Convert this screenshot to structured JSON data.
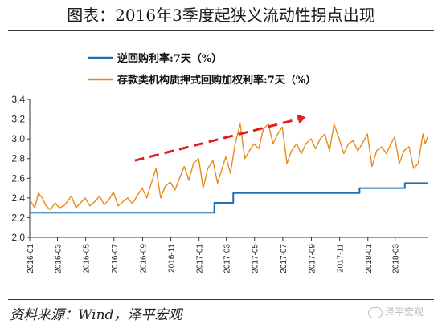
{
  "header": {
    "title": "图表：2016年3季度起狭义流动性拐点出现"
  },
  "footer": {
    "source": "资料来源：Wind，泽平宏观",
    "watermark": "泽平宏观"
  },
  "colors": {
    "blue": "#1f6fb2",
    "orange": "#e88a1a",
    "arrow": "#e02020"
  },
  "chart_data": {
    "type": "line",
    "title": "图表：2016年3季度起狭义流动性拐点出现",
    "xlabel": "",
    "ylabel": "",
    "ylim": [
      2.0,
      3.4
    ],
    "yticks": [
      "2.0",
      "2.2",
      "2.4",
      "2.6",
      "2.8",
      "3.0",
      "3.2",
      "3.4"
    ],
    "xticks": [
      "2016-01",
      "2016-03",
      "2016-05",
      "2016-07",
      "2016-09",
      "2016-11",
      "2017-01",
      "2017-03",
      "2017-05",
      "2017-07",
      "2017-09",
      "2017-11",
      "2018-01",
      "2018-03"
    ],
    "xlim": [
      "2016-01-01",
      "2018-05-10"
    ],
    "legend_position": "top-left",
    "grid": false,
    "annotations": [
      {
        "type": "arrow",
        "from": [
          "2016-08-15",
          2.78
        ],
        "to": [
          "2017-08-20",
          3.22
        ],
        "style": "dashed-red"
      }
    ],
    "series": [
      {
        "name": "逆回购利率:7天（%）",
        "color": "#1f6fb2",
        "step": true,
        "points": [
          [
            "2016-01-01",
            2.25
          ],
          [
            "2017-02-03",
            2.35
          ],
          [
            "2017-03-16",
            2.45
          ],
          [
            "2017-12-14",
            2.5
          ],
          [
            "2018-03-22",
            2.55
          ],
          [
            "2018-05-10",
            2.55
          ]
        ]
      },
      {
        "name": "存款类机构质押式回购加权利率:7天（%）",
        "color": "#e88a1a",
        "points": [
          [
            "2016-01-04",
            2.36
          ],
          [
            "2016-01-12",
            2.3
          ],
          [
            "2016-01-20",
            2.45
          ],
          [
            "2016-01-28",
            2.4
          ],
          [
            "2016-02-05",
            2.32
          ],
          [
            "2016-02-15",
            2.28
          ],
          [
            "2016-02-25",
            2.35
          ],
          [
            "2016-03-05",
            2.3
          ],
          [
            "2016-03-15",
            2.32
          ],
          [
            "2016-03-25",
            2.38
          ],
          [
            "2016-03-31",
            2.42
          ],
          [
            "2016-04-10",
            2.3
          ],
          [
            "2016-04-20",
            2.35
          ],
          [
            "2016-04-30",
            2.4
          ],
          [
            "2016-05-10",
            2.32
          ],
          [
            "2016-05-20",
            2.36
          ],
          [
            "2016-05-31",
            2.42
          ],
          [
            "2016-06-10",
            2.33
          ],
          [
            "2016-06-20",
            2.38
          ],
          [
            "2016-06-30",
            2.46
          ],
          [
            "2016-07-10",
            2.32
          ],
          [
            "2016-07-20",
            2.36
          ],
          [
            "2016-07-31",
            2.4
          ],
          [
            "2016-08-10",
            2.34
          ],
          [
            "2016-08-20",
            2.42
          ],
          [
            "2016-08-31",
            2.5
          ],
          [
            "2016-09-10",
            2.4
          ],
          [
            "2016-09-20",
            2.55
          ],
          [
            "2016-09-30",
            2.7
          ],
          [
            "2016-10-10",
            2.4
          ],
          [
            "2016-10-20",
            2.52
          ],
          [
            "2016-10-31",
            2.56
          ],
          [
            "2016-11-10",
            2.48
          ],
          [
            "2016-11-20",
            2.6
          ],
          [
            "2016-11-30",
            2.72
          ],
          [
            "2016-12-10",
            2.58
          ],
          [
            "2016-12-20",
            2.75
          ],
          [
            "2016-12-31",
            2.8
          ],
          [
            "2017-01-10",
            2.5
          ],
          [
            "2017-01-20",
            2.7
          ],
          [
            "2017-01-31",
            2.78
          ],
          [
            "2017-02-10",
            2.55
          ],
          [
            "2017-02-20",
            2.7
          ],
          [
            "2017-02-28",
            2.82
          ],
          [
            "2017-03-10",
            2.65
          ],
          [
            "2017-03-20",
            2.95
          ],
          [
            "2017-03-31",
            3.15
          ],
          [
            "2017-04-10",
            2.8
          ],
          [
            "2017-04-20",
            2.88
          ],
          [
            "2017-04-30",
            2.95
          ],
          [
            "2017-05-10",
            2.9
          ],
          [
            "2017-05-20",
            3.1
          ],
          [
            "2017-05-31",
            3.15
          ],
          [
            "2017-06-10",
            2.95
          ],
          [
            "2017-06-20",
            3.05
          ],
          [
            "2017-06-30",
            3.12
          ],
          [
            "2017-07-10",
            2.75
          ],
          [
            "2017-07-20",
            2.88
          ],
          [
            "2017-07-31",
            2.95
          ],
          [
            "2017-08-10",
            2.85
          ],
          [
            "2017-08-20",
            2.95
          ],
          [
            "2017-08-31",
            3.0
          ],
          [
            "2017-09-10",
            2.9
          ],
          [
            "2017-09-20",
            3.0
          ],
          [
            "2017-09-30",
            3.05
          ],
          [
            "2017-10-10",
            2.88
          ],
          [
            "2017-10-20",
            3.15
          ],
          [
            "2017-10-31",
            3.0
          ],
          [
            "2017-11-10",
            2.85
          ],
          [
            "2017-11-20",
            2.95
          ],
          [
            "2017-11-30",
            2.98
          ],
          [
            "2017-12-10",
            2.88
          ],
          [
            "2017-12-20",
            2.95
          ],
          [
            "2017-12-31",
            3.05
          ],
          [
            "2018-01-10",
            2.72
          ],
          [
            "2018-01-20",
            2.88
          ],
          [
            "2018-01-31",
            2.92
          ],
          [
            "2018-02-10",
            2.85
          ],
          [
            "2018-02-20",
            2.95
          ],
          [
            "2018-02-28",
            3.02
          ],
          [
            "2018-03-10",
            2.75
          ],
          [
            "2018-03-20",
            2.88
          ],
          [
            "2018-03-31",
            2.92
          ],
          [
            "2018-04-10",
            2.7
          ],
          [
            "2018-04-20",
            2.75
          ],
          [
            "2018-04-30",
            3.05
          ],
          [
            "2018-05-05",
            2.95
          ],
          [
            "2018-05-10",
            3.02
          ]
        ]
      }
    ]
  }
}
